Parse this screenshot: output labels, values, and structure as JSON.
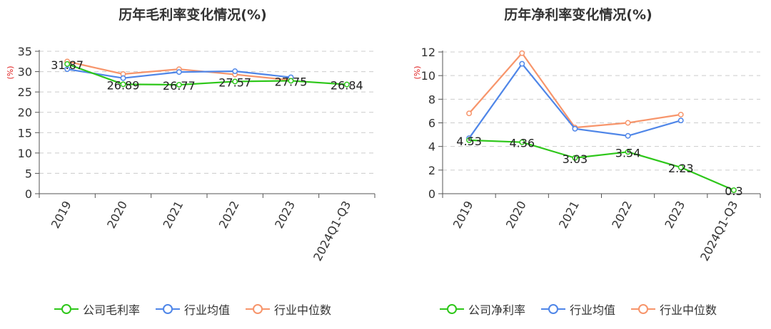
{
  "colors": {
    "company": "#2ec71a",
    "industry_avg": "#4f86e8",
    "industry_median": "#f7956b"
  },
  "chart_data": [
    {
      "type": "line",
      "title": "历年毛利率变化情况(%)",
      "ylabel": "(%)",
      "categories": [
        "2019",
        "2020",
        "2021",
        "2022",
        "2023",
        "2024Q1-Q3"
      ],
      "ylim": [
        0,
        35
      ],
      "yticks": [
        0,
        5,
        10,
        15,
        20,
        25,
        30,
        35
      ],
      "grid": true,
      "legend_position": "bottom",
      "series": [
        {
          "name": "公司毛利率",
          "key": "company",
          "values": [
            31.87,
            26.89,
            26.77,
            27.57,
            27.75,
            26.84
          ],
          "labels": [
            "31.87",
            "26.89",
            "26.77",
            "27.57",
            "27.75",
            "26.84"
          ]
        },
        {
          "name": "行业均值",
          "key": "industry_avg",
          "values": [
            30.6,
            28.4,
            29.9,
            30.1,
            28.6,
            null
          ]
        },
        {
          "name": "行业中位数",
          "key": "industry_median",
          "values": [
            32.5,
            29.4,
            30.6,
            29.3,
            27.9,
            null
          ]
        }
      ]
    },
    {
      "type": "line",
      "title": "历年净利率变化情况(%)",
      "ylabel": "(%)",
      "categories": [
        "2019",
        "2020",
        "2021",
        "2022",
        "2023",
        "2024Q1-Q3"
      ],
      "ylim": [
        0,
        12
      ],
      "yticks": [
        0,
        2,
        4,
        6,
        8,
        10,
        12
      ],
      "grid": true,
      "legend_position": "bottom",
      "series": [
        {
          "name": "公司净利率",
          "key": "company",
          "values": [
            4.53,
            4.36,
            3.03,
            3.54,
            2.23,
            0.3
          ],
          "labels": [
            "4.53",
            "4.36",
            "3.03",
            "3.54",
            "2.23",
            "0.3"
          ]
        },
        {
          "name": "行业均值",
          "key": "industry_avg",
          "values": [
            4.7,
            11.0,
            5.5,
            4.9,
            6.2,
            null
          ]
        },
        {
          "name": "行业中位数",
          "key": "industry_median",
          "values": [
            6.8,
            11.9,
            5.6,
            6.0,
            6.7,
            null
          ]
        }
      ]
    }
  ]
}
